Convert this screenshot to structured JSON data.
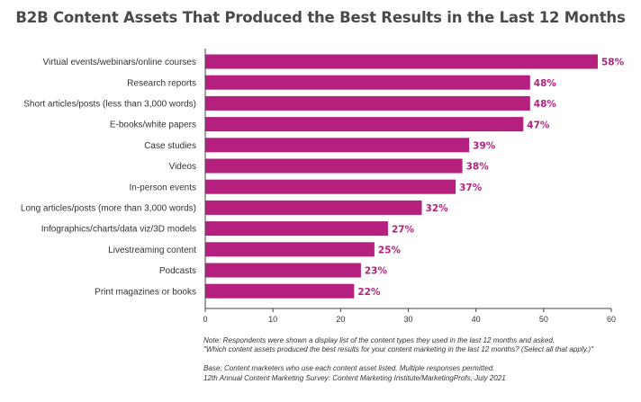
{
  "chart_data": {
    "type": "bar",
    "orientation": "horizontal",
    "title": "B2B Content Assets That Produced the Best Results in the Last 12 Months",
    "categories": [
      "Virtual events/webinars/online courses",
      "Research reports",
      "Short articles/posts (less than 3,000 words)",
      "E-books/white papers",
      "Case studies",
      "Videos",
      "In-person events",
      "Long articles/posts (more than 3,000 words)",
      "Infographics/charts/data viz/3D models",
      "Livestreaming content",
      "Podcasts",
      "Print magazines or books"
    ],
    "values": [
      58,
      48,
      48,
      47,
      39,
      38,
      37,
      32,
      27,
      25,
      23,
      22
    ],
    "value_labels": [
      "58%",
      "48%",
      "48%",
      "47%",
      "39%",
      "38%",
      "37%",
      "32%",
      "27%",
      "25%",
      "23%",
      "22%"
    ],
    "xlim": [
      0,
      60
    ],
    "xticks": [
      0,
      10,
      20,
      30,
      40,
      50,
      60
    ],
    "xlabel": "",
    "ylabel": "",
    "grid": false,
    "bar_color": "#b5207f",
    "label_color": "#b5207f"
  },
  "notes": {
    "line1": "Note: Respondents were shown a display list of the content types they used in the last 12 months and asked,",
    "line2": "\"Which content assets produced the best results for your content marketing in the last 12 months? (Select all that apply.)\"",
    "line3": "Base: Content marketers who use each content asset listed. Multiple responses permitted.",
    "line4": "12th Annual Content Marketing Survey: Content Marketing Institute/MarketingProfs, July 2021"
  }
}
